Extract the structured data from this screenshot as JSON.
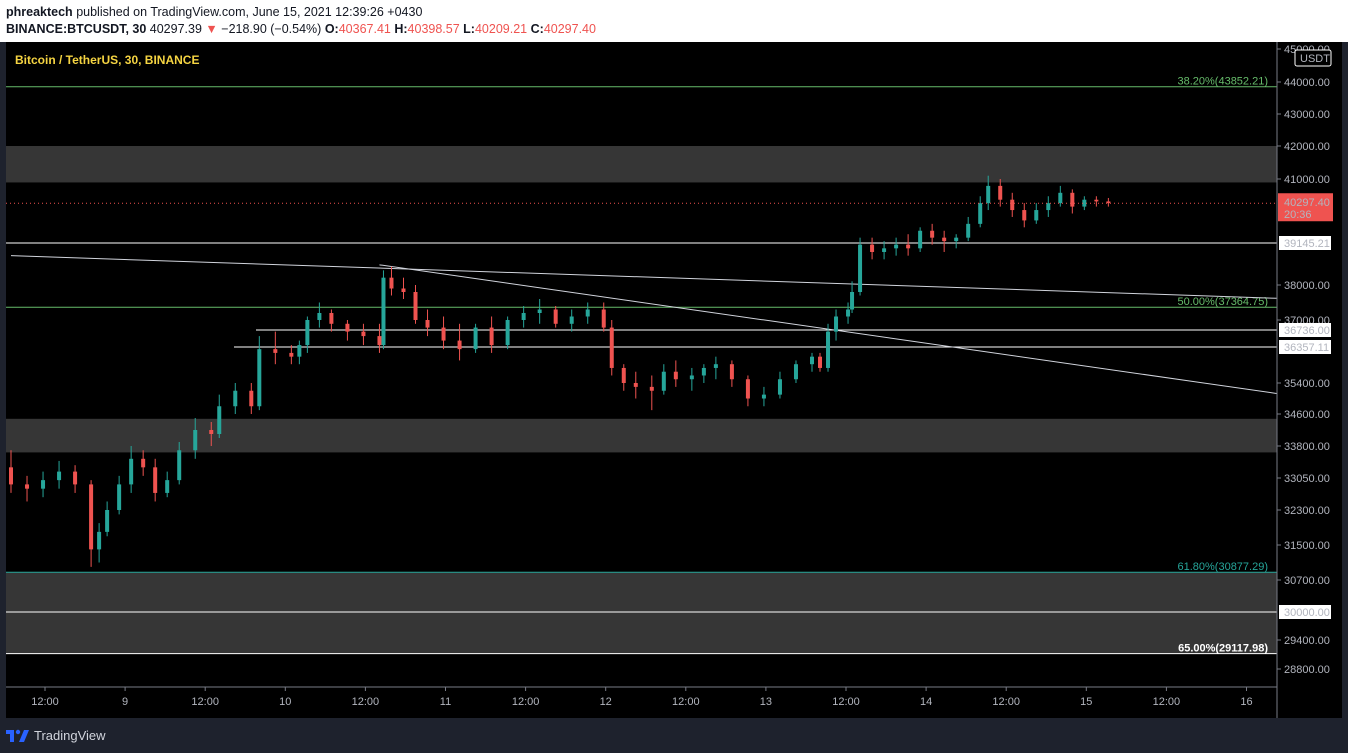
{
  "header": {
    "author": "phreaktech",
    "published": "published on TradingView.com, June 15, 2021 12:39:26 +0430",
    "symbol": "BINANCE:BTCUSDT, 30",
    "last": "40297.39",
    "change_arrow": "▼",
    "change": "−218.90 (−0.54%)",
    "o_label": "O:",
    "o_value": "40367.41",
    "h_label": "H:",
    "h_value": "40398.57",
    "l_label": "L:",
    "l_value": "40209.21",
    "c_label": "C:",
    "c_value": "40297.40"
  },
  "footer": {
    "brand": "TradingView",
    "logo_icon": "tradingview-logo-icon"
  },
  "chart_data": {
    "type": "candlestick",
    "title": "Bitcoin / TetherUS, 30, BINANCE",
    "currency": "USDT",
    "colors": {
      "background": "#000000",
      "up": "#26a69a",
      "down": "#ef5350",
      "zone": "#363636",
      "price_tag": "#ef5350",
      "fib_green": "#66bb6a",
      "fib_teal": "#26a69a",
      "title": "#f5d442"
    },
    "yaxis": {
      "ticks": [
        "45000.00",
        "44000.00",
        "43000.00",
        "42000.00",
        "41000.00",
        "39145.21",
        "38000.00",
        "37000.00",
        "36736.00",
        "36357.11",
        "35400.00",
        "34600.00",
        "33800.00",
        "33050.00",
        "32300.00",
        "31500.00",
        "30700.00",
        "30000.00",
        "29400.00",
        "28800.00"
      ],
      "tick_values": [
        45000,
        44000,
        43000,
        42000,
        41000,
        39145.21,
        38000,
        37000,
        36736,
        36357.11,
        35400,
        34600,
        33800,
        33050,
        32300,
        31500,
        30700,
        30000,
        29400,
        28800
      ],
      "boxed_labels": [
        "39145.21",
        "36736.00",
        "36357.11",
        "30000.00"
      ],
      "scale": "segmented"
    },
    "xaxis": {
      "ticks": [
        "12:00",
        "9",
        "12:00",
        "10",
        "12:00",
        "11",
        "12:00",
        "12",
        "12:00",
        "13",
        "12:00",
        "14",
        "12:00",
        "15",
        "12:00",
        "16"
      ]
    },
    "last_price": {
      "value": 40297.4,
      "label": "40297.40",
      "countdown": "20:36"
    },
    "fib_levels": [
      {
        "label": "38.20%(43852.21)",
        "value": 43852.21,
        "color": "#66bb6a"
      },
      {
        "label": "50.00%(37364.75)",
        "value": 37364.75,
        "color": "#66bb6a"
      },
      {
        "label": "61.80%(30877.29)",
        "value": 30877.29,
        "color": "#26a69a"
      },
      {
        "label": "65.00%(29117.98)",
        "value": 29117.98,
        "color": "#ffffff"
      }
    ],
    "zones": [
      {
        "from": 40900,
        "to": 42000
      },
      {
        "from": 33650,
        "to": 34480
      },
      {
        "from": 29117.98,
        "to": 30877.29
      }
    ],
    "horizontal_levels": [
      39145.21,
      36736,
      36357.11,
      30000
    ],
    "trendlines": [
      {
        "from": {
          "x": 0,
          "y": 38800
        },
        "to": {
          "x": 15.8,
          "y": 37620
        }
      },
      {
        "from": {
          "x": 4.6,
          "y": 38550
        },
        "to": {
          "x": 15.8,
          "y": 35130
        }
      }
    ],
    "candles_30m": [
      [
        0,
        33300,
        33700,
        32700,
        32900
      ],
      [
        0.2,
        32900,
        33100,
        32500,
        32800
      ],
      [
        0.4,
        32800,
        33200,
        32600,
        33000
      ],
      [
        0.6,
        33000,
        33450,
        32800,
        33200
      ],
      [
        0.8,
        33200,
        33350,
        32700,
        32900
      ],
      [
        1.0,
        32900,
        33000,
        31000,
        31400
      ],
      [
        1.1,
        31400,
        32000,
        31100,
        31800
      ],
      [
        1.2,
        31800,
        32500,
        31700,
        32300
      ],
      [
        1.35,
        32300,
        33100,
        32200,
        32900
      ],
      [
        1.5,
        32900,
        33800,
        32700,
        33500
      ],
      [
        1.65,
        33500,
        33700,
        33100,
        33300
      ],
      [
        1.8,
        33300,
        33500,
        32500,
        32700
      ],
      [
        1.95,
        32700,
        33200,
        32600,
        33000
      ],
      [
        2.1,
        33000,
        33900,
        32900,
        33700
      ],
      [
        2.3,
        33700,
        34500,
        33500,
        34200
      ],
      [
        2.5,
        34200,
        34400,
        33800,
        34100
      ],
      [
        2.6,
        34100,
        35100,
        34000,
        34800
      ],
      [
        2.8,
        34800,
        35400,
        34600,
        35200
      ],
      [
        3.0,
        35200,
        35400,
        34600,
        34800
      ],
      [
        3.1,
        34800,
        36600,
        34700,
        36300
      ],
      [
        3.3,
        36300,
        36700,
        35900,
        36200
      ],
      [
        3.5,
        36200,
        36400,
        35900,
        36100
      ],
      [
        3.6,
        36100,
        36500,
        35900,
        36400
      ],
      [
        3.7,
        36400,
        37100,
        36200,
        37000
      ],
      [
        3.85,
        37000,
        37500,
        36800,
        37200
      ],
      [
        4.0,
        37200,
        37300,
        36700,
        36900
      ],
      [
        4.2,
        36900,
        37000,
        36500,
        36700
      ],
      [
        4.4,
        36700,
        36900,
        36400,
        36600
      ],
      [
        4.6,
        36600,
        36900,
        36200,
        36400
      ],
      [
        4.65,
        36400,
        38400,
        36300,
        38200
      ],
      [
        4.75,
        38200,
        38500,
        37700,
        37900
      ],
      [
        4.9,
        37900,
        38200,
        37600,
        37800
      ],
      [
        5.05,
        37800,
        38000,
        36900,
        37000
      ],
      [
        5.2,
        37000,
        37300,
        36600,
        36800
      ],
      [
        5.4,
        36800,
        37100,
        36300,
        36500
      ],
      [
        5.6,
        36500,
        36900,
        36000,
        36300
      ],
      [
        5.8,
        36300,
        36900,
        36200,
        36800
      ],
      [
        6.0,
        36800,
        37100,
        36200,
        36400
      ],
      [
        6.2,
        36400,
        37100,
        36300,
        37000
      ],
      [
        6.4,
        37000,
        37400,
        36800,
        37200
      ],
      [
        6.6,
        37200,
        37600,
        36900,
        37300
      ],
      [
        6.8,
        37300,
        37400,
        36800,
        36900
      ],
      [
        7.0,
        36900,
        37300,
        36700,
        37100
      ],
      [
        7.2,
        37100,
        37500,
        36900,
        37300
      ],
      [
        7.4,
        37300,
        37500,
        36700,
        36800
      ],
      [
        7.5,
        36800,
        37000,
        35600,
        35800
      ],
      [
        7.65,
        35800,
        35900,
        35200,
        35400
      ],
      [
        7.8,
        35400,
        35700,
        35000,
        35300
      ],
      [
        8.0,
        35300,
        35600,
        34700,
        35200
      ],
      [
        8.15,
        35200,
        35900,
        35100,
        35700
      ],
      [
        8.3,
        35700,
        36000,
        35300,
        35500
      ],
      [
        8.5,
        35500,
        35800,
        35200,
        35600
      ],
      [
        8.65,
        35600,
        35900,
        35400,
        35800
      ],
      [
        8.8,
        35800,
        36100,
        35500,
        35900
      ],
      [
        9.0,
        35900,
        36000,
        35300,
        35500
      ],
      [
        9.2,
        35500,
        35600,
        34800,
        35000
      ],
      [
        9.4,
        35000,
        35300,
        34800,
        35100
      ],
      [
        9.6,
        35100,
        35700,
        35000,
        35500
      ],
      [
        9.8,
        35500,
        36000,
        35400,
        35900
      ],
      [
        10.0,
        35900,
        36200,
        35700,
        36100
      ],
      [
        10.1,
        36100,
        36200,
        35700,
        35800
      ],
      [
        10.2,
        35800,
        36900,
        35700,
        36700
      ],
      [
        10.3,
        36700,
        37300,
        36500,
        37100
      ],
      [
        10.45,
        37100,
        37500,
        36900,
        37300
      ],
      [
        10.5,
        37300,
        38100,
        37200,
        37800
      ],
      [
        10.6,
        37800,
        39300,
        37700,
        39100
      ],
      [
        10.75,
        39100,
        39300,
        38700,
        38900
      ],
      [
        10.9,
        38900,
        39200,
        38700,
        39000
      ],
      [
        11.05,
        39000,
        39300,
        38800,
        39100
      ],
      [
        11.2,
        39100,
        39400,
        38800,
        39000
      ],
      [
        11.35,
        39000,
        39600,
        38900,
        39500
      ],
      [
        11.5,
        39500,
        39700,
        39100,
        39300
      ],
      [
        11.65,
        39300,
        39500,
        38900,
        39200
      ],
      [
        11.8,
        39200,
        39400,
        39000,
        39300
      ],
      [
        11.95,
        39300,
        39900,
        39200,
        39700
      ],
      [
        12.1,
        39700,
        40500,
        39600,
        40300
      ],
      [
        12.2,
        40300,
        41100,
        40100,
        40800
      ],
      [
        12.35,
        40800,
        41000,
        40200,
        40400
      ],
      [
        12.5,
        40400,
        40600,
        39900,
        40100
      ],
      [
        12.65,
        40100,
        40300,
        39600,
        39800
      ],
      [
        12.8,
        39800,
        40300,
        39700,
        40100
      ],
      [
        12.95,
        40100,
        40500,
        39900,
        40300
      ],
      [
        13.1,
        40300,
        40800,
        40200,
        40600
      ],
      [
        13.25,
        40600,
        40700,
        40000,
        40200
      ],
      [
        13.4,
        40200,
        40500,
        40100,
        40400
      ],
      [
        13.55,
        40400,
        40500,
        40200,
        40350
      ],
      [
        13.7,
        40350,
        40450,
        40200,
        40300
      ]
    ]
  }
}
